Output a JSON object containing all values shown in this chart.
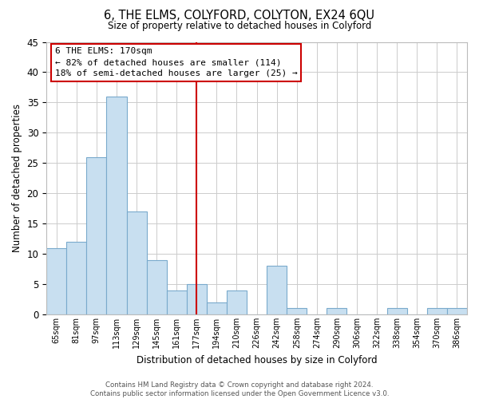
{
  "title": "6, THE ELMS, COLYFORD, COLYTON, EX24 6QU",
  "subtitle": "Size of property relative to detached houses in Colyford",
  "xlabel": "Distribution of detached houses by size in Colyford",
  "ylabel": "Number of detached properties",
  "bar_color": "#c8dff0",
  "bar_edge_color": "#7aaacc",
  "bin_labels": [
    "65sqm",
    "81sqm",
    "97sqm",
    "113sqm",
    "129sqm",
    "145sqm",
    "161sqm",
    "177sqm",
    "194sqm",
    "210sqm",
    "226sqm",
    "242sqm",
    "258sqm",
    "274sqm",
    "290sqm",
    "306sqm",
    "322sqm",
    "338sqm",
    "354sqm",
    "370sqm",
    "386sqm"
  ],
  "bin_values": [
    11,
    12,
    26,
    36,
    17,
    9,
    4,
    5,
    2,
    4,
    0,
    8,
    1,
    0,
    1,
    0,
    0,
    1,
    0,
    1,
    1
  ],
  "ylim": [
    0,
    45
  ],
  "yticks": [
    0,
    5,
    10,
    15,
    20,
    25,
    30,
    35,
    40,
    45
  ],
  "vline_x_index": 7,
  "vline_color": "#cc0000",
  "annotation_title": "6 THE ELMS: 170sqm",
  "annotation_line1": "← 82% of detached houses are smaller (114)",
  "annotation_line2": "18% of semi-detached houses are larger (25) →",
  "footer_line1": "Contains HM Land Registry data © Crown copyright and database right 2024.",
  "footer_line2": "Contains public sector information licensed under the Open Government Licence v3.0.",
  "background_color": "#ffffff",
  "grid_color": "#cccccc"
}
